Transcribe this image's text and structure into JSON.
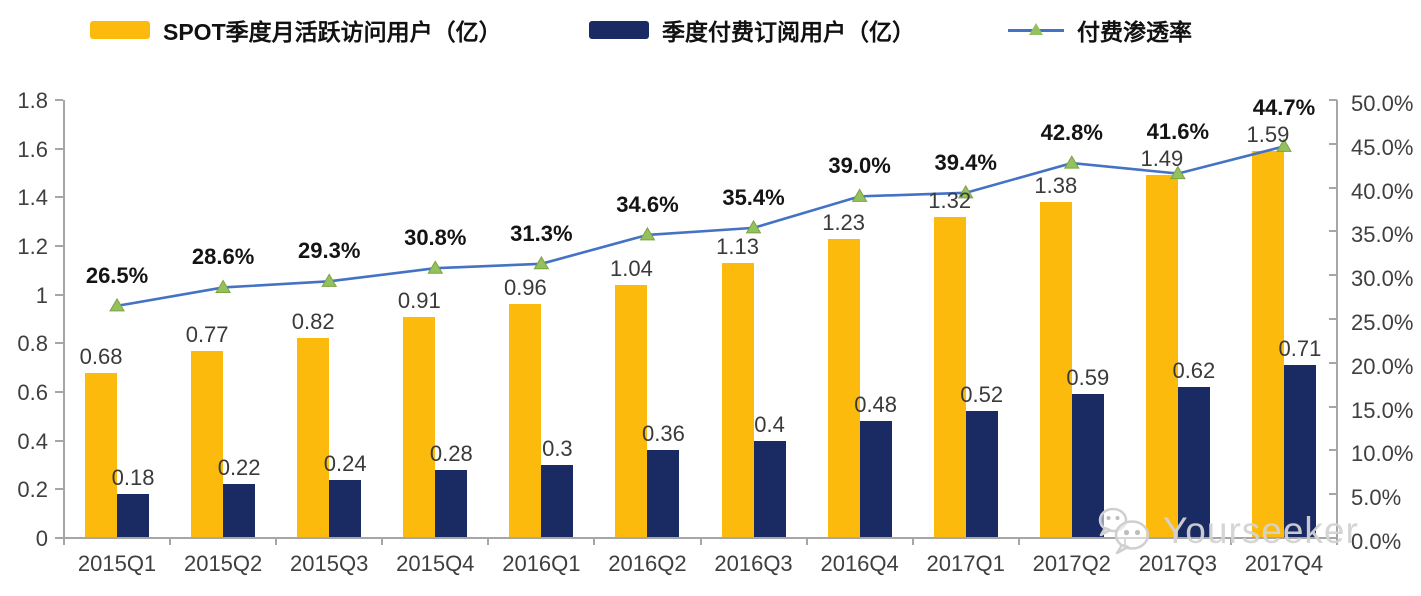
{
  "legend": {
    "series1": "SPOT季度月活跃访问用户（亿）",
    "series2": "季度付费订阅用户（亿）",
    "series3": "付费渗透率"
  },
  "watermark": {
    "text": "Yourseeker"
  },
  "colors": {
    "mau_bar": "#FBBA0C",
    "subs_bar": "#1A2B63",
    "line": "#4472C4",
    "marker_fill": "#95C05E",
    "marker_stroke": "#7BA442",
    "axis": "#A6A6A6",
    "tick_label": "#3F3F3F",
    "value_label": "#3A3A3A",
    "pct_label": "#141414",
    "watermark": "#D3D3D3"
  },
  "chart_data": {
    "type": "bar",
    "subtype": "grouped bars with secondary-axis line",
    "categories": [
      "2015Q1",
      "2015Q2",
      "2015Q3",
      "2015Q4",
      "2016Q1",
      "2016Q2",
      "2016Q3",
      "2016Q4",
      "2017Q1",
      "2017Q2",
      "2017Q3",
      "2017Q4"
    ],
    "series": [
      {
        "name": "SPOT季度月活跃访问用户（亿）",
        "type": "bar",
        "axis": "left",
        "color": "#FBBA0C",
        "values": [
          0.68,
          0.77,
          0.82,
          0.91,
          0.96,
          1.04,
          1.13,
          1.23,
          1.32,
          1.38,
          1.49,
          1.59
        ],
        "labels": [
          "0.68",
          "0.77",
          "0.82",
          "0.91",
          "0.96",
          "1.04",
          "1.13",
          "1.23",
          "1.32",
          "1.38",
          "1.49",
          "1.59"
        ]
      },
      {
        "name": "季度付费订阅用户（亿）",
        "type": "bar",
        "axis": "left",
        "color": "#1A2B63",
        "values": [
          0.18,
          0.22,
          0.24,
          0.28,
          0.3,
          0.36,
          0.4,
          0.48,
          0.52,
          0.59,
          0.62,
          0.71
        ],
        "labels": [
          "0.18",
          "0.22",
          "0.24",
          "0.28",
          "0.3",
          "0.36",
          "0.4",
          "0.48",
          "0.52",
          "0.59",
          "0.62",
          "0.71"
        ]
      },
      {
        "name": "付费渗透率",
        "type": "line",
        "axis": "right",
        "color": "#4472C4",
        "marker": "triangle",
        "values": [
          26.5,
          28.6,
          29.3,
          30.8,
          31.3,
          34.6,
          35.4,
          39.0,
          39.4,
          42.8,
          41.6,
          44.7
        ],
        "labels": [
          "26.5%",
          "28.6%",
          "29.3%",
          "30.8%",
          "31.3%",
          "34.6%",
          "35.4%",
          "39.0%",
          "39.4%",
          "42.8%",
          "41.6%",
          "44.7%"
        ]
      }
    ],
    "left_axis": {
      "min": 0,
      "max": 1.8,
      "step": 0.2,
      "tick_labels": [
        "0",
        "0.2",
        "0.4",
        "0.6",
        "0.8",
        "1",
        "1.2",
        "1.4",
        "1.6",
        "1.8"
      ]
    },
    "right_axis": {
      "min": 0,
      "max": 50,
      "step": 5,
      "tick_labels": [
        "0.0%",
        "5.0%",
        "10.0%",
        "15.0%",
        "20.0%",
        "25.0%",
        "30.0%",
        "35.0%",
        "40.0%",
        "45.0%",
        "50.0%"
      ]
    },
    "grid": false,
    "legend_position": "top"
  }
}
